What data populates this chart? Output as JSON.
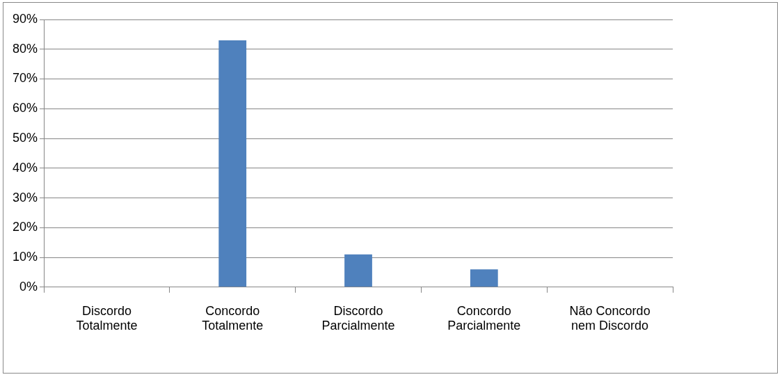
{
  "chart_data": {
    "type": "bar",
    "categories": [
      "Discordo Totalmente",
      "Concordo Totalmente",
      "Discordo Parcialmente",
      "Concordo Parcialmente",
      "Não Concordo nem Discordo"
    ],
    "values": [
      0,
      83,
      11,
      6,
      0
    ],
    "color": "#4f81bd",
    "ylim": [
      0,
      90
    ],
    "yticks": [
      {
        "value": 0,
        "label": "0%"
      },
      {
        "value": 10,
        "label": "10%"
      },
      {
        "value": 20,
        "label": "20%"
      },
      {
        "value": 30,
        "label": "30%"
      },
      {
        "value": 40,
        "label": "40%"
      },
      {
        "value": 50,
        "label": "50%"
      },
      {
        "value": 60,
        "label": "60%"
      },
      {
        "value": 70,
        "label": "70%"
      },
      {
        "value": 80,
        "label": "80%"
      },
      {
        "value": 90,
        "label": "90%"
      }
    ],
    "grid": "y",
    "legend": false
  }
}
